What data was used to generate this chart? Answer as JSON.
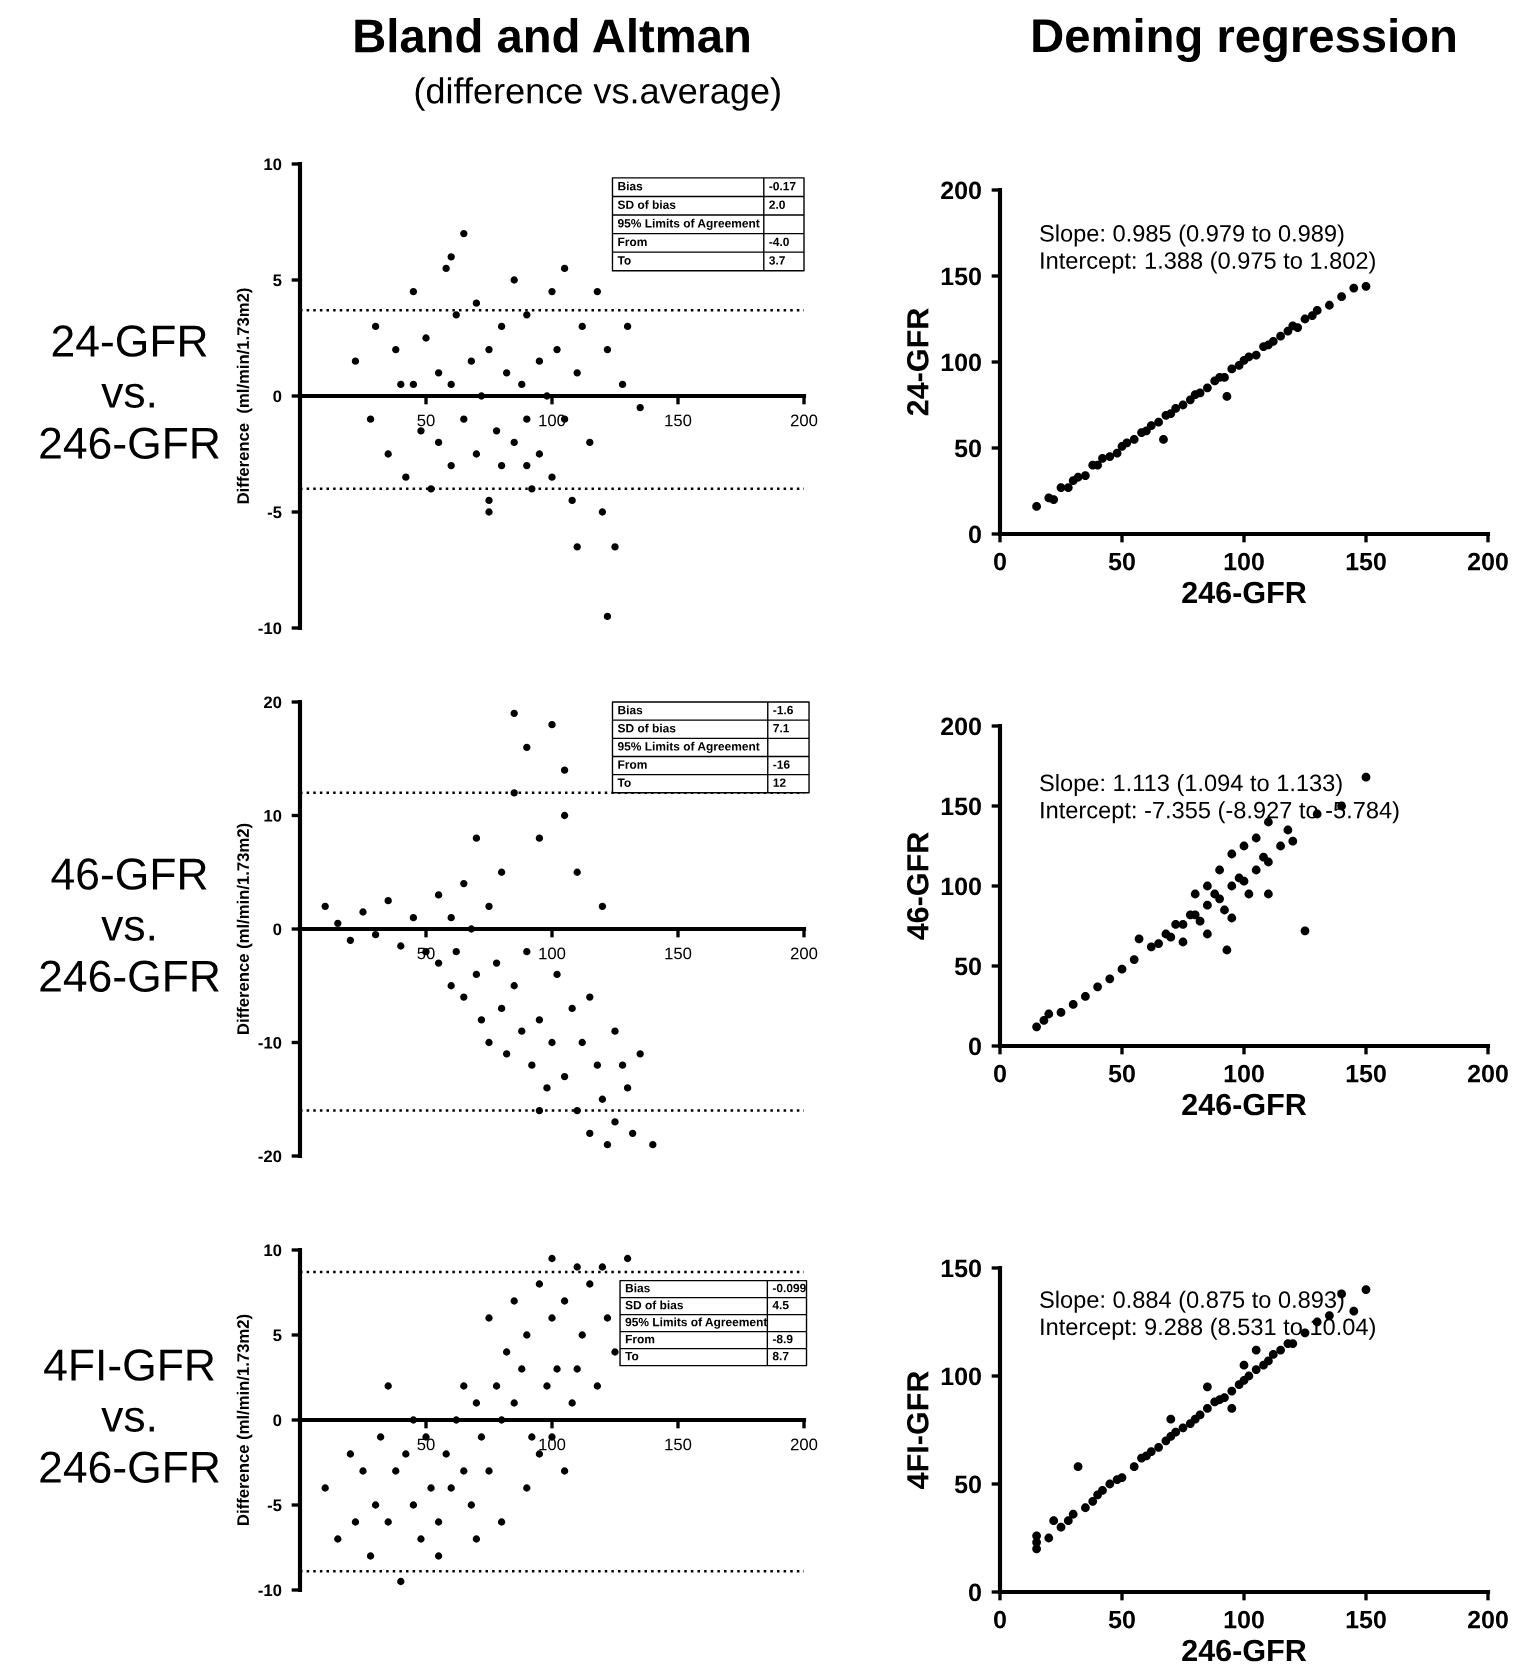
{
  "chart_data": [
    {
      "type": "scatter",
      "title": "Bland and Altman",
      "subtitle": "(difference vs.average)",
      "ylabel": "Difference  (ml/min/1.73m2)",
      "xlim": [
        0,
        200
      ],
      "ylim": [
        -10,
        10
      ],
      "xticks": [
        50,
        100,
        150,
        200
      ],
      "yticks": [
        -10,
        -5,
        0,
        5,
        10
      ],
      "marker": "circle",
      "ref_lines": [
        {
          "axis": "y",
          "value": 3.7,
          "line_style": "dotted"
        },
        {
          "axis": "y",
          "value": -4.0,
          "line_style": "dotted"
        }
      ],
      "annotations": [
        "24-GFR\nvs.\n246-GFR",
        "Bias",
        "-0.17",
        "SD of bias",
        "2.0",
        "95% Limits of Agreement",
        "From",
        "-4.0",
        "To",
        "3.7"
      ],
      "series": [
        {
          "color": "#000000",
          "x": [
            22,
            28,
            30,
            35,
            38,
            40,
            42,
            45,
            48,
            50,
            52,
            55,
            55,
            58,
            60,
            60,
            62,
            65,
            65,
            68,
            70,
            70,
            72,
            75,
            75,
            78,
            80,
            80,
            82,
            85,
            85,
            88,
            90,
            90,
            92,
            95,
            95,
            98,
            100,
            100,
            102,
            105,
            105,
            108,
            110,
            110,
            112,
            115,
            118,
            120,
            122,
            122,
            125,
            128,
            130,
            135,
            60,
            75,
            90,
            45
          ],
          "values": [
            1.5,
            -1.0,
            3.0,
            -2.5,
            2.0,
            0.5,
            -3.5,
            4.5,
            -1.5,
            2.5,
            -4.0,
            1.0,
            -2.0,
            5.5,
            0.5,
            -3.0,
            3.5,
            -1.0,
            7.0,
            1.5,
            -2.5,
            4.0,
            0.0,
            -4.5,
            2.0,
            -1.5,
            3.0,
            -3.0,
            1.0,
            5.0,
            -2.0,
            0.5,
            -1.0,
            3.5,
            -4.0,
            1.5,
            -2.5,
            0.0,
            4.5,
            -3.5,
            2.0,
            -1.0,
            5.5,
            -4.5,
            1.0,
            -6.5,
            3.0,
            -2.0,
            4.5,
            -5.0,
            -9.5,
            2.0,
            -6.5,
            0.5,
            3.0,
            -0.5,
            6.0,
            -5.0,
            -3.0,
            0.5
          ]
        }
      ]
    },
    {
      "type": "scatter",
      "title": "Deming regression",
      "xlabel": "246-GFR",
      "ylabel": "24-GFR",
      "xlim": [
        0,
        200
      ],
      "ylim": [
        0,
        200
      ],
      "xticks": [
        0,
        50,
        100,
        150,
        200
      ],
      "yticks": [
        0,
        50,
        100,
        150,
        200
      ],
      "marker": "circle",
      "annotations": [
        "Slope: 0.985 (0.979 to 0.989)",
        "Intercept: 1.388 (0.975 to 1.802)"
      ],
      "series": [
        {
          "color": "#000000",
          "x": [
            15,
            20,
            22,
            25,
            28,
            30,
            32,
            35,
            38,
            40,
            42,
            45,
            48,
            50,
            52,
            55,
            58,
            60,
            62,
            65,
            67,
            68,
            70,
            72,
            75,
            78,
            80,
            82,
            85,
            88,
            90,
            92,
            93,
            95,
            98,
            100,
            102,
            105,
            108,
            110,
            112,
            115,
            118,
            120,
            122,
            125,
            128,
            130,
            135,
            140,
            145,
            150
          ],
          "values": [
            16,
            21,
            20,
            27,
            27,
            31,
            33,
            34,
            40,
            40,
            44,
            45,
            47,
            51,
            53,
            55,
            59,
            60,
            63,
            65,
            55,
            69,
            70,
            73,
            75,
            78,
            81,
            82,
            85,
            89,
            91,
            91,
            80,
            96,
            98,
            101,
            103,
            104,
            109,
            110,
            112,
            115,
            118,
            121,
            120,
            125,
            127,
            130,
            133,
            138,
            143,
            144
          ]
        }
      ]
    },
    {
      "type": "scatter",
      "ylabel": "Difference (ml/min/1.73m2)",
      "xlim": [
        0,
        200
      ],
      "ylim": [
        -20,
        20
      ],
      "xticks": [
        50,
        100,
        150,
        200
      ],
      "yticks": [
        -20,
        -10,
        0,
        10,
        20
      ],
      "marker": "circle",
      "ref_lines": [
        {
          "axis": "y",
          "value": 12,
          "line_style": "dotted"
        },
        {
          "axis": "y",
          "value": -16,
          "line_style": "dotted"
        }
      ],
      "annotations": [
        "46-GFR\nvs.\n246-GFR",
        "Bias",
        "-1.6",
        "SD of bias",
        "7.1",
        "95% Limits of Agreement",
        "From",
        "-16",
        "To",
        "12"
      ],
      "series": [
        {
          "color": "#000000",
          "x": [
            10,
            15,
            20,
            25,
            30,
            35,
            40,
            45,
            50,
            55,
            55,
            60,
            60,
            62,
            65,
            65,
            68,
            70,
            70,
            72,
            75,
            75,
            78,
            80,
            80,
            82,
            85,
            85,
            88,
            90,
            90,
            92,
            95,
            95,
            98,
            100,
            100,
            102,
            105,
            105,
            108,
            110,
            110,
            112,
            115,
            115,
            118,
            120,
            120,
            122,
            125,
            125,
            128,
            130,
            132,
            135,
            140,
            85,
            95,
            105
          ],
          "values": [
            2,
            0.5,
            -1,
            1.5,
            -0.5,
            2.5,
            -1.5,
            1,
            -2,
            3,
            -3,
            1,
            -5,
            -2,
            4,
            -6,
            0,
            -4,
            8,
            -8,
            2,
            -10,
            -3,
            5,
            -7,
            -11,
            12,
            -5,
            -9,
            16,
            -2,
            -12,
            8,
            -8,
            -14,
            18,
            -10,
            -4,
            14,
            -13,
            -7,
            -16,
            5,
            -10,
            -18,
            -6,
            -12,
            -15,
            2,
            -19,
            -9,
            -17,
            -12,
            -14,
            -18,
            -11,
            -19,
            19,
            -16,
            10
          ]
        }
      ]
    },
    {
      "type": "scatter",
      "xlabel": "246-GFR",
      "ylabel": "46-GFR",
      "xlim": [
        0,
        200
      ],
      "ylim": [
        0,
        200
      ],
      "xticks": [
        0,
        50,
        100,
        150,
        200
      ],
      "yticks": [
        0,
        50,
        100,
        150,
        200
      ],
      "marker": "circle",
      "annotations": [
        "Slope: 1.113 (1.094 to 1.133)",
        "Intercept: -7.355 (-8.927 to -5.784)"
      ],
      "series": [
        {
          "color": "#000000",
          "x": [
            15,
            18,
            20,
            25,
            30,
            35,
            40,
            45,
            50,
            55,
            57,
            62,
            65,
            68,
            70,
            72,
            75,
            78,
            80,
            80,
            82,
            85,
            85,
            88,
            90,
            90,
            92,
            95,
            95,
            98,
            100,
            100,
            102,
            105,
            105,
            108,
            110,
            110,
            115,
            118,
            120,
            125,
            130,
            140,
            150,
            95,
            85,
            75,
            93,
            110
          ],
          "values": [
            12,
            16,
            20,
            21,
            26,
            31,
            37,
            42,
            48,
            54,
            67,
            62,
            64,
            70,
            68,
            76,
            76,
            82,
            82,
            95,
            78,
            88,
            100,
            95,
            92,
            110,
            85,
            100,
            120,
            105,
            103,
            125,
            95,
            110,
            130,
            118,
            115,
            140,
            125,
            135,
            128,
            72,
            145,
            150,
            168,
            80,
            70,
            65,
            60,
            95
          ]
        }
      ]
    },
    {
      "type": "scatter",
      "ylabel": "Difference (ml/min/1.73m2)",
      "xlim": [
        0,
        200
      ],
      "ylim": [
        -10,
        10
      ],
      "xticks": [
        50,
        100,
        150,
        200
      ],
      "yticks": [
        -10,
        -5,
        0,
        5,
        10
      ],
      "marker": "circle",
      "ref_lines": [
        {
          "axis": "y",
          "value": 8.7,
          "line_style": "dotted"
        },
        {
          "axis": "y",
          "value": -8.9,
          "line_style": "dotted"
        }
      ],
      "annotations": [
        "4FI-GFR\nvs.\n246-GFR",
        "Bias",
        "-0.099",
        "SD of bias",
        "4.5",
        "95% Limits of Agreement",
        "From",
        "-8.9",
        "To",
        "8.7"
      ],
      "series": [
        {
          "color": "#000000",
          "x": [
            10,
            15,
            20,
            22,
            25,
            28,
            30,
            32,
            35,
            38,
            40,
            42,
            45,
            48,
            50,
            52,
            55,
            58,
            60,
            62,
            65,
            68,
            70,
            72,
            75,
            78,
            80,
            82,
            85,
            88,
            90,
            92,
            95,
            98,
            100,
            100,
            102,
            105,
            108,
            110,
            112,
            115,
            118,
            120,
            122,
            125,
            65,
            75,
            85,
            95,
            105,
            55,
            45,
            35,
            70,
            80,
            90,
            100,
            110,
            130
          ],
          "values": [
            -4,
            -7,
            -2,
            -6,
            -3,
            -8,
            -5,
            -1,
            -6,
            -3,
            -9.5,
            -2,
            -5,
            -7,
            -1,
            -4,
            -6,
            -2,
            -4,
            0,
            -3,
            -5,
            1,
            -1,
            -3,
            2,
            0,
            4,
            1,
            3,
            5,
            -1,
            8,
            2,
            6,
            9.5,
            3,
            7,
            1,
            9,
            5,
            8,
            2,
            9,
            6,
            4,
            2,
            6,
            7,
            -2,
            -3,
            -8,
            0,
            2,
            -7,
            -6,
            -4,
            -1,
            3,
            9.5
          ]
        }
      ]
    },
    {
      "type": "scatter",
      "xlabel": "246-GFR",
      "ylabel": "4FI-GFR",
      "xlim": [
        0,
        200
      ],
      "ylim": [
        0,
        150
      ],
      "xticks": [
        0,
        50,
        100,
        150,
        200
      ],
      "yticks": [
        0,
        50,
        100,
        150
      ],
      "marker": "circle",
      "annotations": [
        "Slope: 0.884 (0.875 to 0.893)",
        "Intercept: 9.288 (8.531 to 10.04)"
      ],
      "series": [
        {
          "color": "#000000",
          "x": [
            15,
            15,
            15,
            20,
            22,
            25,
            28,
            30,
            32,
            35,
            38,
            40,
            42,
            45,
            48,
            50,
            55,
            58,
            60,
            62,
            65,
            68,
            70,
            72,
            75,
            78,
            80,
            82,
            85,
            88,
            90,
            92,
            95,
            98,
            100,
            100,
            102,
            105,
            108,
            110,
            112,
            115,
            118,
            120,
            125,
            130,
            135,
            140,
            145,
            150,
            70,
            85,
            95,
            105
          ],
          "values": [
            20,
            23,
            26,
            25,
            33,
            30,
            33,
            36,
            58,
            39,
            42,
            45,
            47,
            50,
            52,
            53,
            58,
            62,
            63,
            65,
            67,
            70,
            72,
            74,
            76,
            78,
            80,
            82,
            85,
            88,
            89,
            90,
            93,
            96,
            98,
            105,
            100,
            103,
            105,
            107,
            110,
            112,
            115,
            115,
            120,
            125,
            128,
            138,
            130,
            140,
            80,
            95,
            85,
            112
          ]
        }
      ]
    }
  ]
}
